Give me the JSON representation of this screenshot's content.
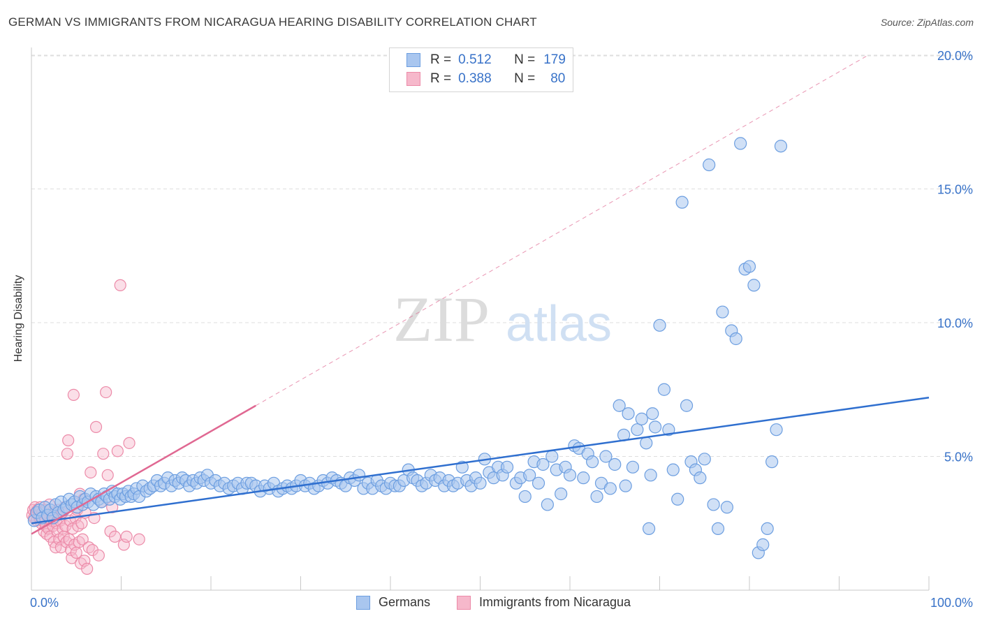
{
  "header": {
    "title": "GERMAN VS IMMIGRANTS FROM NICARAGUA HEARING DISABILITY CORRELATION CHART",
    "source": "Source: ZipAtlas.com"
  },
  "watermark": {
    "zip": "ZIP",
    "atlas": "atlas"
  },
  "colors": {
    "blue_fill": "#a9c6ef",
    "blue_stroke": "#6c9ee0",
    "blue_line": "#2f6fcf",
    "pink_fill": "#f6b8cb",
    "pink_stroke": "#ec8aa8",
    "pink_line": "#e06892",
    "axis_label": "#3872c8",
    "grid": "#dedede"
  },
  "stats_legend": {
    "rows": [
      {
        "r_label": "R =",
        "r_value": "0.512",
        "n_label": "N =",
        "n_value": "179",
        "color": "#a9c6ef"
      },
      {
        "r_label": "R =",
        "r_value": "0.388",
        "n_label": "N =",
        "n_value": "80",
        "color": "#f6b8cb"
      }
    ]
  },
  "chart_data": {
    "type": "scatter",
    "title": "GERMAN VS IMMIGRANTS FROM NICARAGUA HEARING DISABILITY CORRELATION CHART",
    "xlabel": "",
    "ylabel": "Hearing Disability",
    "xlim": [
      0,
      100
    ],
    "ylim": [
      0,
      20.5
    ],
    "x_tick_labels": [
      "0.0%",
      "100.0%"
    ],
    "y_ticks": [
      5,
      10,
      15,
      20
    ],
    "y_tick_labels": [
      "5.0%",
      "10.0%",
      "15.0%",
      "20.0%"
    ],
    "grid": "horizontal dashed",
    "legend_position": "bottom",
    "series": [
      {
        "name": "Germans",
        "color": "#a9c6ef",
        "trend": {
          "x": [
            0,
            100
          ],
          "y": [
            2.5,
            7.2
          ]
        },
        "points": [
          [
            0.3,
            2.6
          ],
          [
            0.6,
            2.9
          ],
          [
            0.9,
            3.0
          ],
          [
            1.2,
            2.7
          ],
          [
            1.5,
            3.1
          ],
          [
            1.8,
            2.8
          ],
          [
            2.1,
            3.0
          ],
          [
            2.4,
            2.7
          ],
          [
            2.7,
            3.2
          ],
          [
            3.0,
            2.9
          ],
          [
            3.3,
            3.3
          ],
          [
            3.6,
            3.0
          ],
          [
            3.9,
            3.1
          ],
          [
            4.2,
            3.4
          ],
          [
            4.5,
            3.2
          ],
          [
            4.8,
            3.3
          ],
          [
            5.1,
            3.1
          ],
          [
            5.4,
            3.5
          ],
          [
            5.7,
            3.2
          ],
          [
            6.0,
            3.4
          ],
          [
            6.3,
            3.3
          ],
          [
            6.6,
            3.6
          ],
          [
            6.9,
            3.2
          ],
          [
            7.2,
            3.5
          ],
          [
            7.5,
            3.4
          ],
          [
            7.8,
            3.3
          ],
          [
            8.1,
            3.6
          ],
          [
            8.4,
            3.5
          ],
          [
            8.7,
            3.4
          ],
          [
            9.0,
            3.7
          ],
          [
            9.3,
            3.5
          ],
          [
            9.6,
            3.6
          ],
          [
            9.9,
            3.4
          ],
          [
            10.2,
            3.6
          ],
          [
            10.5,
            3.5
          ],
          [
            10.8,
            3.7
          ],
          [
            11.1,
            3.5
          ],
          [
            11.4,
            3.6
          ],
          [
            11.7,
            3.8
          ],
          [
            12.0,
            3.5
          ],
          [
            12.4,
            3.9
          ],
          [
            12.8,
            3.7
          ],
          [
            13.2,
            3.8
          ],
          [
            13.6,
            3.9
          ],
          [
            14.0,
            4.1
          ],
          [
            14.4,
            3.9
          ],
          [
            14.8,
            4.0
          ],
          [
            15.2,
            4.2
          ],
          [
            15.6,
            3.9
          ],
          [
            16.0,
            4.1
          ],
          [
            16.4,
            4.0
          ],
          [
            16.8,
            4.2
          ],
          [
            17.2,
            4.1
          ],
          [
            17.6,
            3.9
          ],
          [
            18.0,
            4.1
          ],
          [
            18.4,
            4.0
          ],
          [
            18.8,
            4.2
          ],
          [
            19.2,
            4.1
          ],
          [
            19.6,
            4.3
          ],
          [
            20.0,
            4.0
          ],
          [
            20.5,
            4.1
          ],
          [
            21.0,
            3.9
          ],
          [
            21.5,
            4.0
          ],
          [
            22.0,
            3.8
          ],
          [
            22.5,
            3.9
          ],
          [
            23.0,
            4.0
          ],
          [
            23.5,
            3.8
          ],
          [
            24.0,
            4.0
          ],
          [
            24.5,
            4.0
          ],
          [
            25.0,
            3.9
          ],
          [
            25.5,
            3.7
          ],
          [
            26.0,
            3.9
          ],
          [
            26.5,
            3.8
          ],
          [
            27.0,
            4.0
          ],
          [
            27.5,
            3.7
          ],
          [
            28.0,
            3.8
          ],
          [
            28.5,
            3.9
          ],
          [
            29.0,
            3.8
          ],
          [
            29.5,
            3.9
          ],
          [
            30.0,
            4.1
          ],
          [
            30.5,
            3.9
          ],
          [
            31.0,
            4.0
          ],
          [
            31.5,
            3.8
          ],
          [
            32.0,
            3.9
          ],
          [
            32.5,
            4.1
          ],
          [
            33.0,
            4.0
          ],
          [
            33.5,
            4.2
          ],
          [
            34.0,
            4.1
          ],
          [
            34.5,
            4.0
          ],
          [
            35.0,
            3.9
          ],
          [
            35.5,
            4.2
          ],
          [
            36.0,
            4.1
          ],
          [
            36.5,
            4.3
          ],
          [
            37.0,
            3.8
          ],
          [
            37.5,
            4.0
          ],
          [
            38.0,
            3.8
          ],
          [
            38.5,
            4.1
          ],
          [
            39.0,
            3.9
          ],
          [
            39.5,
            3.8
          ],
          [
            40.0,
            4.0
          ],
          [
            40.5,
            3.9
          ],
          [
            41.0,
            3.9
          ],
          [
            41.5,
            4.1
          ],
          [
            42.0,
            4.5
          ],
          [
            42.5,
            4.2
          ],
          [
            43.0,
            4.1
          ],
          [
            43.5,
            3.9
          ],
          [
            44.0,
            4.0
          ],
          [
            44.5,
            4.3
          ],
          [
            45.0,
            4.1
          ],
          [
            45.5,
            4.2
          ],
          [
            46.0,
            3.9
          ],
          [
            46.5,
            4.1
          ],
          [
            47.0,
            3.9
          ],
          [
            47.5,
            4.0
          ],
          [
            48.0,
            4.6
          ],
          [
            48.5,
            4.1
          ],
          [
            49.0,
            3.9
          ],
          [
            49.5,
            4.2
          ],
          [
            50.0,
            4.0
          ],
          [
            50.5,
            4.9
          ],
          [
            51.0,
            4.4
          ],
          [
            51.5,
            4.2
          ],
          [
            52.0,
            4.6
          ],
          [
            52.5,
            4.3
          ],
          [
            53.0,
            4.6
          ],
          [
            54.0,
            4.0
          ],
          [
            54.5,
            4.2
          ],
          [
            55.0,
            3.5
          ],
          [
            55.5,
            4.3
          ],
          [
            56.0,
            4.8
          ],
          [
            56.5,
            4.0
          ],
          [
            57.0,
            4.7
          ],
          [
            57.5,
            3.2
          ],
          [
            58.0,
            5.0
          ],
          [
            58.5,
            4.5
          ],
          [
            59.0,
            3.6
          ],
          [
            59.5,
            4.6
          ],
          [
            60.0,
            4.3
          ],
          [
            60.5,
            5.4
          ],
          [
            61.0,
            5.3
          ],
          [
            61.5,
            4.2
          ],
          [
            62.0,
            5.1
          ],
          [
            62.5,
            4.8
          ],
          [
            63.0,
            3.5
          ],
          [
            63.5,
            4.0
          ],
          [
            64.0,
            5.0
          ],
          [
            64.5,
            3.8
          ],
          [
            65.0,
            4.7
          ],
          [
            65.5,
            6.9
          ],
          [
            66.0,
            5.8
          ],
          [
            66.5,
            6.6
          ],
          [
            67.0,
            4.6
          ],
          [
            67.5,
            6.0
          ],
          [
            68.0,
            6.4
          ],
          [
            68.5,
            5.5
          ],
          [
            69.0,
            4.3
          ],
          [
            69.5,
            6.1
          ],
          [
            70.0,
            9.9
          ],
          [
            70.5,
            7.5
          ],
          [
            71.0,
            6.0
          ],
          [
            71.5,
            4.5
          ],
          [
            72.0,
            3.4
          ],
          [
            72.5,
            14.5
          ],
          [
            73.0,
            6.9
          ],
          [
            73.5,
            4.8
          ],
          [
            74.0,
            4.5
          ],
          [
            74.5,
            4.2
          ],
          [
            75.0,
            4.9
          ],
          [
            75.5,
            15.9
          ],
          [
            76.0,
            3.2
          ],
          [
            76.5,
            2.3
          ],
          [
            77.0,
            10.4
          ],
          [
            77.5,
            3.1
          ],
          [
            78.0,
            9.7
          ],
          [
            78.5,
            9.4
          ],
          [
            79.0,
            16.7
          ],
          [
            79.5,
            12.0
          ],
          [
            80.0,
            12.1
          ],
          [
            80.5,
            11.4
          ],
          [
            81.0,
            1.4
          ],
          [
            81.5,
            1.7
          ],
          [
            82.0,
            2.3
          ],
          [
            82.5,
            4.8
          ],
          [
            83.0,
            6.0
          ],
          [
            83.5,
            16.6
          ],
          [
            68.8,
            2.3
          ],
          [
            66.2,
            3.9
          ],
          [
            69.2,
            6.6
          ]
        ]
      },
      {
        "name": "Immigrants from Nicaragua",
        "color": "#f6b8cb",
        "trend": {
          "x": [
            0,
            25
          ],
          "y": [
            2.1,
            6.9
          ]
        },
        "points": [
          [
            0.1,
            2.8
          ],
          [
            0.2,
            3.0
          ],
          [
            0.3,
            2.7
          ],
          [
            0.4,
            3.1
          ],
          [
            0.5,
            2.9
          ],
          [
            0.6,
            2.6
          ],
          [
            0.7,
            3.0
          ],
          [
            0.8,
            2.8
          ],
          [
            0.9,
            2.7
          ],
          [
            1.0,
            3.1
          ],
          [
            1.1,
            2.5
          ],
          [
            1.2,
            2.9
          ],
          [
            1.3,
            2.6
          ],
          [
            1.4,
            2.2
          ],
          [
            1.5,
            3.0
          ],
          [
            1.6,
            2.4
          ],
          [
            1.7,
            2.1
          ],
          [
            1.8,
            2.8
          ],
          [
            1.9,
            2.3
          ],
          [
            2.0,
            3.2
          ],
          [
            2.1,
            2.0
          ],
          [
            2.2,
            2.6
          ],
          [
            2.3,
            2.9
          ],
          [
            2.4,
            2.4
          ],
          [
            2.5,
            1.8
          ],
          [
            2.6,
            2.7
          ],
          [
            2.7,
            1.6
          ],
          [
            2.8,
            2.5
          ],
          [
            2.9,
            2.2
          ],
          [
            3.0,
            3.0
          ],
          [
            3.1,
            1.9
          ],
          [
            3.2,
            2.6
          ],
          [
            3.3,
            1.6
          ],
          [
            3.4,
            2.9
          ],
          [
            3.5,
            2.3
          ],
          [
            3.6,
            2.0
          ],
          [
            3.7,
            3.1
          ],
          [
            3.8,
            2.4
          ],
          [
            3.9,
            1.8
          ],
          [
            4.0,
            5.1
          ],
          [
            4.1,
            5.6
          ],
          [
            4.2,
            1.9
          ],
          [
            4.3,
            2.6
          ],
          [
            4.4,
            1.5
          ],
          [
            4.5,
            1.2
          ],
          [
            4.6,
            2.3
          ],
          [
            4.7,
            7.3
          ],
          [
            4.8,
            1.7
          ],
          [
            4.9,
            2.7
          ],
          [
            5.0,
            1.4
          ],
          [
            5.1,
            3.0
          ],
          [
            5.2,
            2.4
          ],
          [
            5.3,
            1.8
          ],
          [
            5.4,
            3.6
          ],
          [
            5.5,
            1.0
          ],
          [
            5.6,
            2.5
          ],
          [
            5.7,
            1.9
          ],
          [
            5.8,
            3.4
          ],
          [
            5.9,
            1.1
          ],
          [
            6.0,
            2.9
          ],
          [
            6.2,
            0.8
          ],
          [
            6.4,
            1.6
          ],
          [
            6.6,
            4.4
          ],
          [
            6.8,
            1.5
          ],
          [
            7.0,
            2.7
          ],
          [
            7.2,
            6.1
          ],
          [
            7.5,
            1.3
          ],
          [
            7.8,
            3.3
          ],
          [
            8.0,
            5.1
          ],
          [
            8.3,
            7.4
          ],
          [
            8.5,
            4.3
          ],
          [
            8.8,
            2.2
          ],
          [
            9.0,
            3.1
          ],
          [
            9.3,
            2.0
          ],
          [
            9.6,
            5.2
          ],
          [
            9.9,
            11.4
          ],
          [
            10.3,
            1.7
          ],
          [
            10.6,
            2.0
          ],
          [
            10.9,
            5.5
          ],
          [
            12.0,
            1.9
          ]
        ]
      }
    ]
  },
  "bottom_legend": {
    "items": [
      {
        "label": "Germans",
        "color": "#a9c6ef"
      },
      {
        "label": "Immigrants from Nicaragua",
        "color": "#f6b8cb"
      }
    ]
  }
}
